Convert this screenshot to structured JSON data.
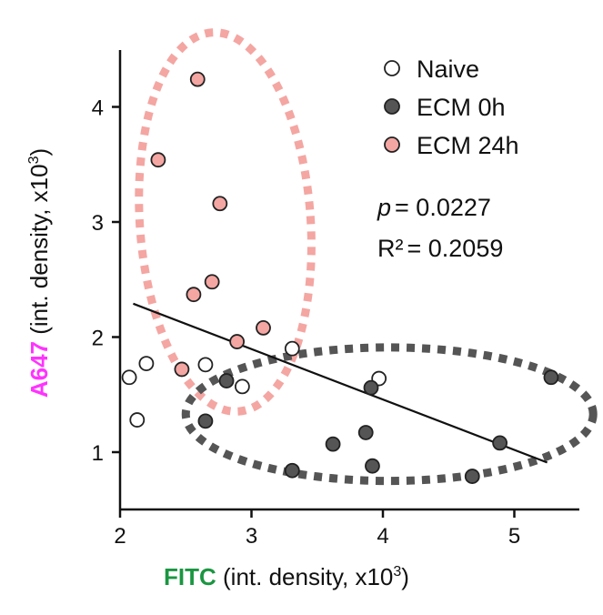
{
  "chart_data": {
    "type": "scatter",
    "xlabel": {
      "highlight": "FITC",
      "highlight_color": "#1a9641",
      "rest": " (int. density, x10",
      "sup": "3",
      "end": ")"
    },
    "ylabel": {
      "highlight": "A647",
      "highlight_color": "#ff33ff",
      "rest": " (int. density, x10",
      "sup": "3",
      "end": ")"
    },
    "xlim": [
      2,
      5.5
    ],
    "ylim": [
      0.5,
      4.5
    ],
    "xticks": [
      2,
      3,
      4,
      5
    ],
    "yticks": [
      1,
      2,
      3,
      4
    ],
    "xtick_labels": [
      "2",
      "3",
      "4",
      "5"
    ],
    "ytick_labels": [
      "1",
      "2",
      "3",
      "4"
    ],
    "legend_position": "top-right",
    "series": [
      {
        "name": "Naive",
        "fill": "#ffffff",
        "stroke": "#222222",
        "points": [
          [
            2.07,
            1.65
          ],
          [
            2.13,
            1.28
          ],
          [
            2.2,
            1.77
          ],
          [
            2.65,
            1.76
          ],
          [
            2.93,
            1.57
          ],
          [
            3.31,
            1.9
          ],
          [
            3.97,
            1.64
          ]
        ]
      },
      {
        "name": "ECM 0h",
        "fill": "#555555",
        "stroke": "#222222",
        "points": [
          [
            2.65,
            1.27
          ],
          [
            2.81,
            1.62
          ],
          [
            3.31,
            0.84
          ],
          [
            3.62,
            1.07
          ],
          [
            3.87,
            1.17
          ],
          [
            3.91,
            1.56
          ],
          [
            3.92,
            0.88
          ],
          [
            4.68,
            0.79
          ],
          [
            4.89,
            1.08
          ],
          [
            5.28,
            1.65
          ]
        ]
      },
      {
        "name": "ECM 24h",
        "fill": "#f4a6a2",
        "stroke": "#222222",
        "points": [
          [
            2.29,
            3.54
          ],
          [
            2.47,
            1.72
          ],
          [
            2.56,
            2.37
          ],
          [
            2.59,
            4.24
          ],
          [
            2.7,
            2.48
          ],
          [
            2.76,
            3.16
          ],
          [
            2.89,
            1.96
          ],
          [
            3.09,
            2.08
          ]
        ]
      }
    ],
    "regression": {
      "x": [
        2.1,
        5.25
      ],
      "y": [
        2.29,
        0.91
      ]
    },
    "stats": {
      "p_label": "p",
      "p_value": "= 0.0227",
      "r2_label": "R²",
      "r2_value": "= 0.2059"
    },
    "ellipses": [
      {
        "group": "ECM 24h",
        "color": "#f4a6a2",
        "cx": 2.8,
        "cy": 3.0,
        "rx": 0.65,
        "ry": 1.65,
        "rotation_deg": -4
      },
      {
        "group": "ECM 0h",
        "color": "#555555",
        "cx": 4.05,
        "cy": 1.33,
        "rx": 1.55,
        "ry": 0.58,
        "rotation_deg": 0
      }
    ]
  }
}
